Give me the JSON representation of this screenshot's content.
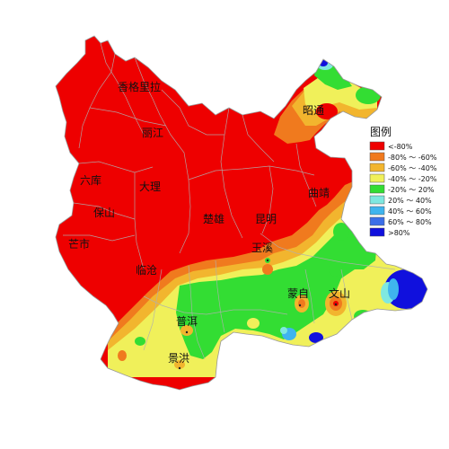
{
  "legend": {
    "title": "图例",
    "items": [
      {
        "label": "<-80%",
        "color": "#ee0000"
      },
      {
        "label": "-80% ～ -60%",
        "color": "#f07a1e"
      },
      {
        "label": "-60% ～ -40%",
        "color": "#f2b52e"
      },
      {
        "label": "-40% ～ -20%",
        "color": "#f0f05a"
      },
      {
        "label": "-20% ～ 20%",
        "color": "#33dd33"
      },
      {
        "label": "20% ～ 40%",
        "color": "#7fe8e0"
      },
      {
        "label": "40% ～ 60%",
        "color": "#3fb4ee"
      },
      {
        "label": "60% ～ 80%",
        "color": "#3b6ee8"
      },
      {
        "label": ">80%",
        "color": "#1010dd"
      }
    ]
  },
  "cities": [
    {
      "name": "香格里拉"
    },
    {
      "name": "丽江"
    },
    {
      "name": "昭通"
    },
    {
      "name": "六库"
    },
    {
      "name": "大理"
    },
    {
      "name": "曲靖"
    },
    {
      "name": "保山"
    },
    {
      "name": "楚雄"
    },
    {
      "name": "昆明"
    },
    {
      "name": "芒市"
    },
    {
      "name": "玉溪"
    },
    {
      "name": "临沧"
    },
    {
      "name": "蒙自"
    },
    {
      "name": "文山"
    },
    {
      "name": "普洱"
    },
    {
      "name": "景洪"
    }
  ]
}
